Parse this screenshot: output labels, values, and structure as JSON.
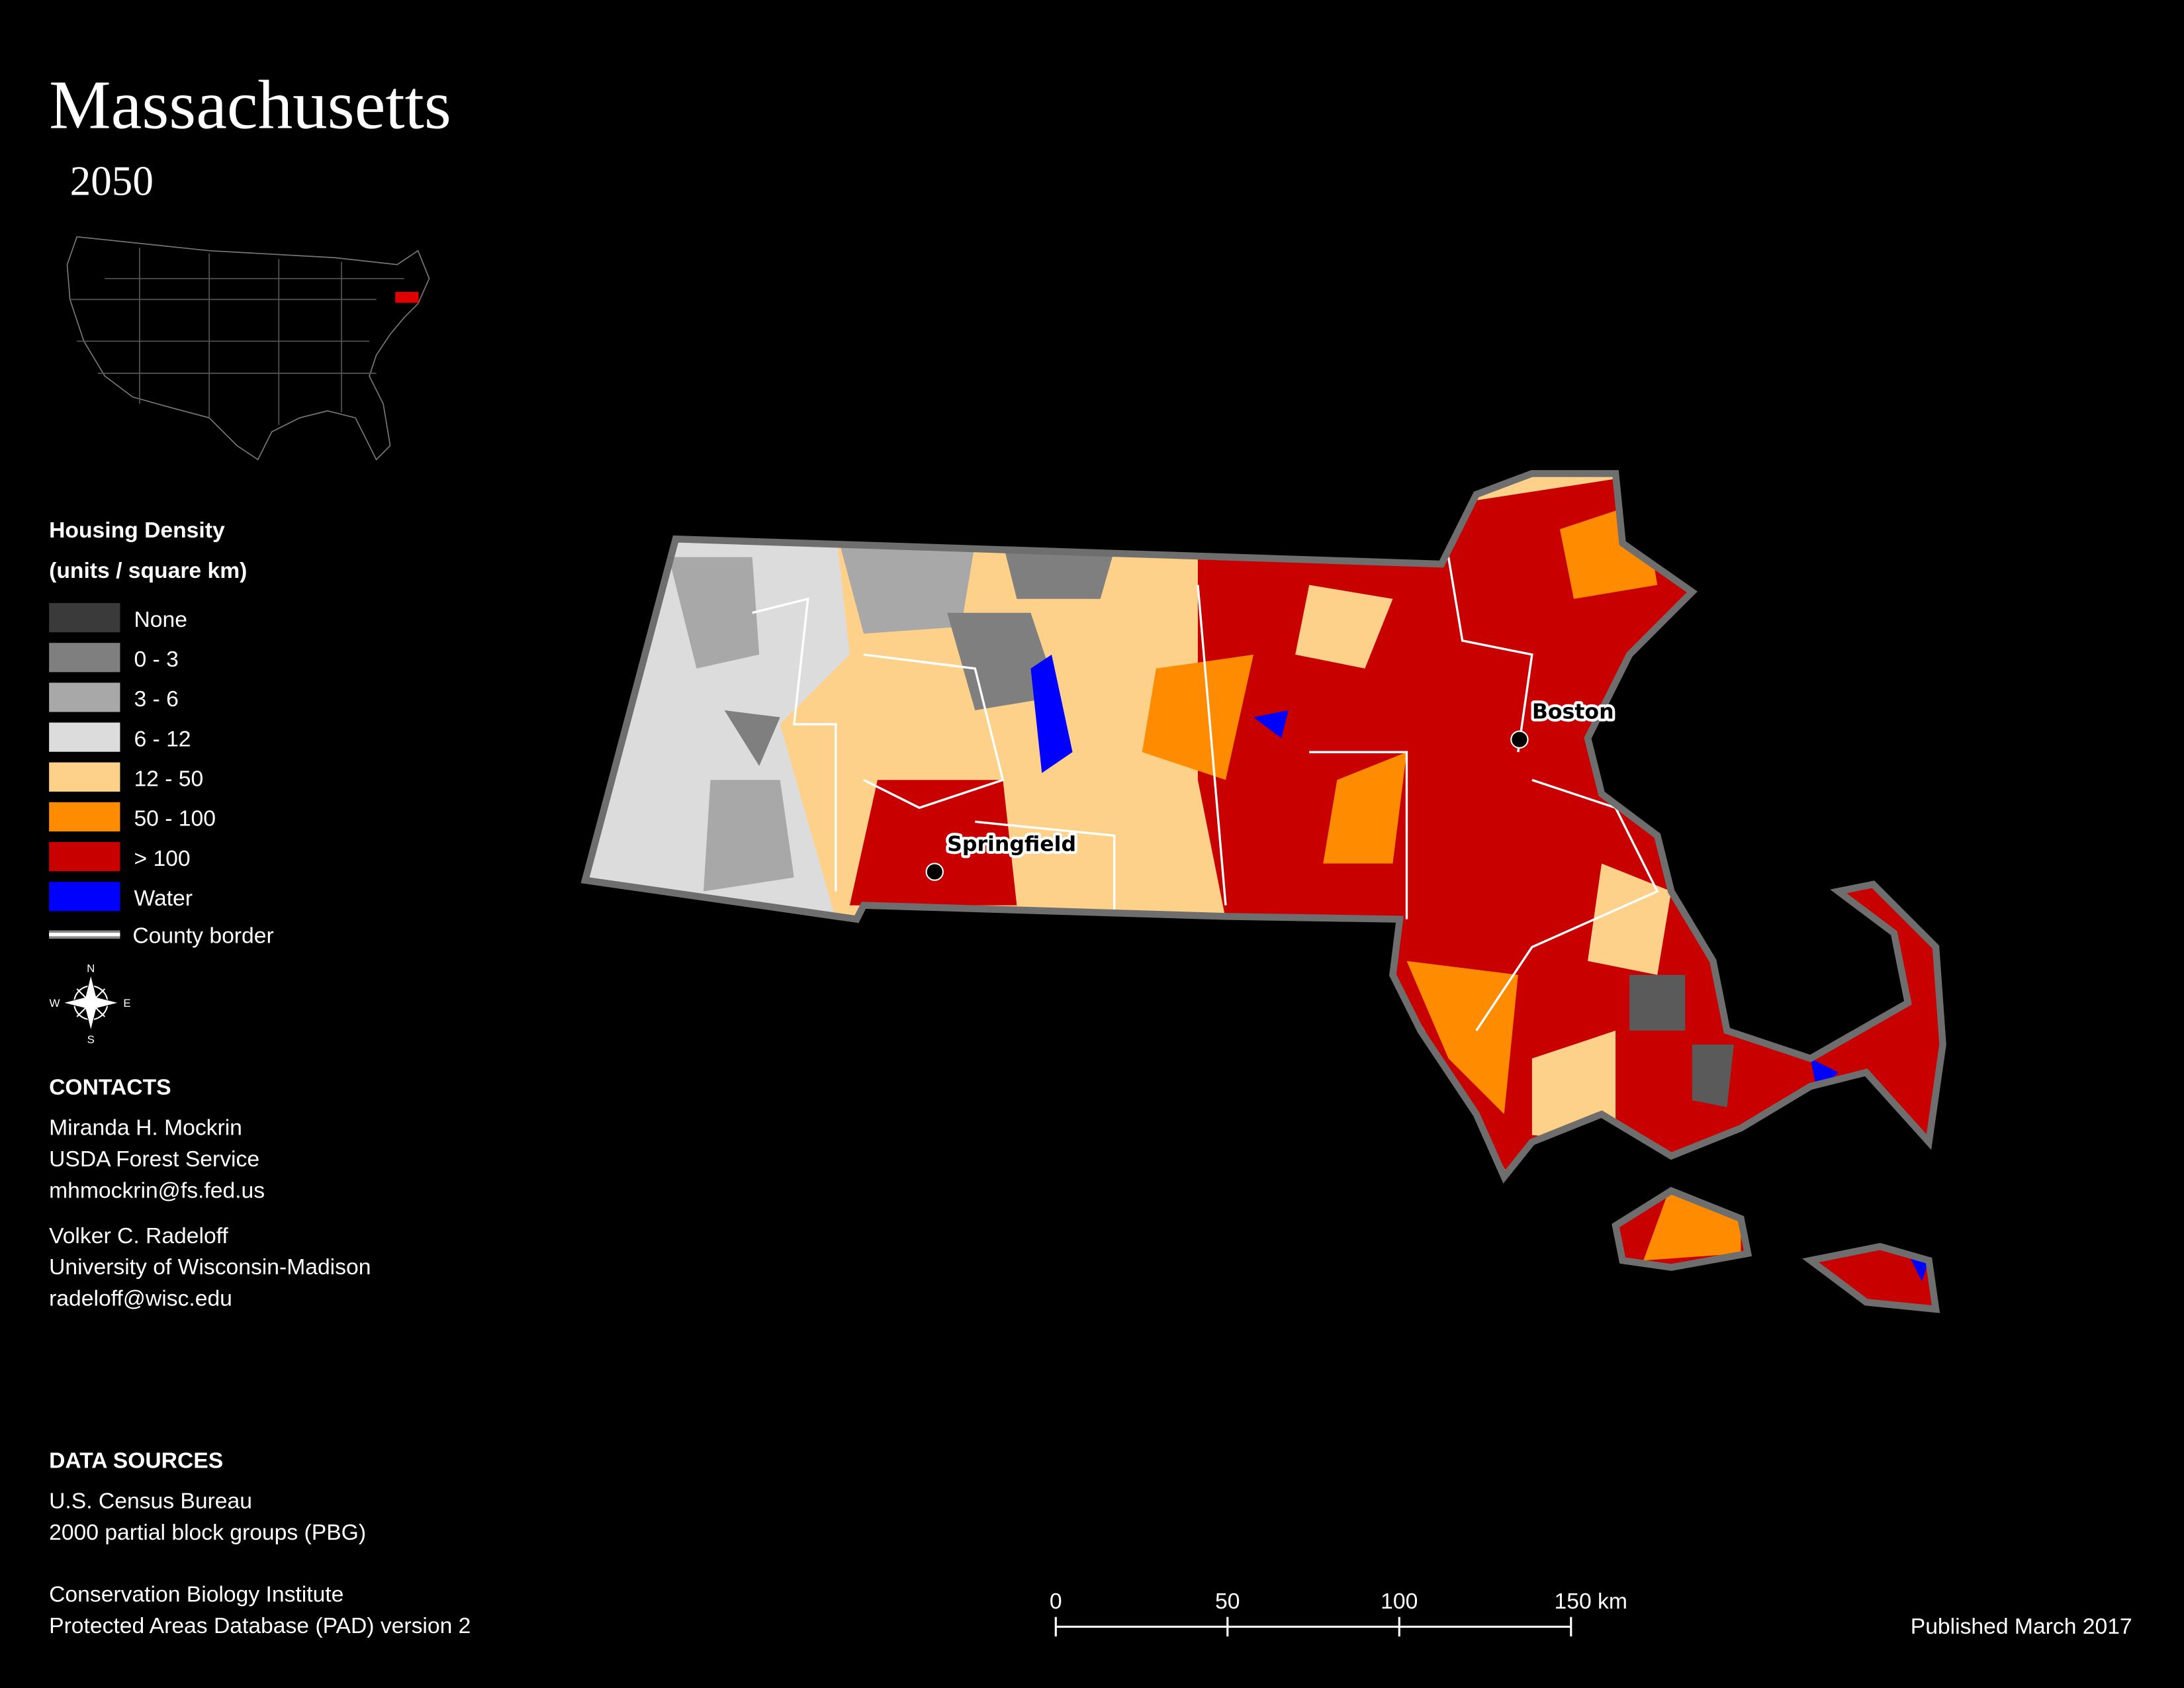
{
  "header": {
    "title": "Massachusetts",
    "subtitle": "2050"
  },
  "legend": {
    "title": "Housing Density",
    "units": "(units / square km)",
    "items": [
      {
        "label": "None",
        "color": "#3a3a3a"
      },
      {
        "label": "0 - 3",
        "color": "#7f7f7f"
      },
      {
        "label": "3 - 6",
        "color": "#a8a8a8"
      },
      {
        "label": "6 - 12",
        "color": "#dcdcdc"
      },
      {
        "label": "12 - 50",
        "color": "#fdd18a"
      },
      {
        "label": "50 - 100",
        "color": "#ff8c00"
      },
      {
        "label": "> 100",
        "color": "#c80000"
      },
      {
        "label": "Water",
        "color": "#0000ff"
      }
    ],
    "border_label": "County border"
  },
  "compass": {
    "n": "N",
    "e": "E",
    "s": "S",
    "w": "W"
  },
  "contacts": {
    "heading": "CONTACTS",
    "people": [
      [
        "Miranda H. Mockrin",
        "USDA Forest Service",
        "mhmockrin@fs.fed.us"
      ],
      [
        "Volker C. Radeloff",
        "University of Wisconsin-Madison",
        "radeloff@wisc.edu"
      ]
    ]
  },
  "sources": {
    "heading": "DATA SOURCES",
    "groups": [
      [
        "U.S. Census Bureau",
        "2000 partial block groups (PBG)"
      ],
      [
        "Conservation Biology Institute",
        "Protected Areas Database (PAD) version 2"
      ]
    ]
  },
  "cities": [
    "Boston",
    "Springfield"
  ],
  "scale_bar": {
    "ticks": [
      0,
      50,
      100,
      {
        "value": 150,
        "label": "150 km"
      }
    ]
  },
  "footer": {
    "published": "Published March 2017"
  }
}
